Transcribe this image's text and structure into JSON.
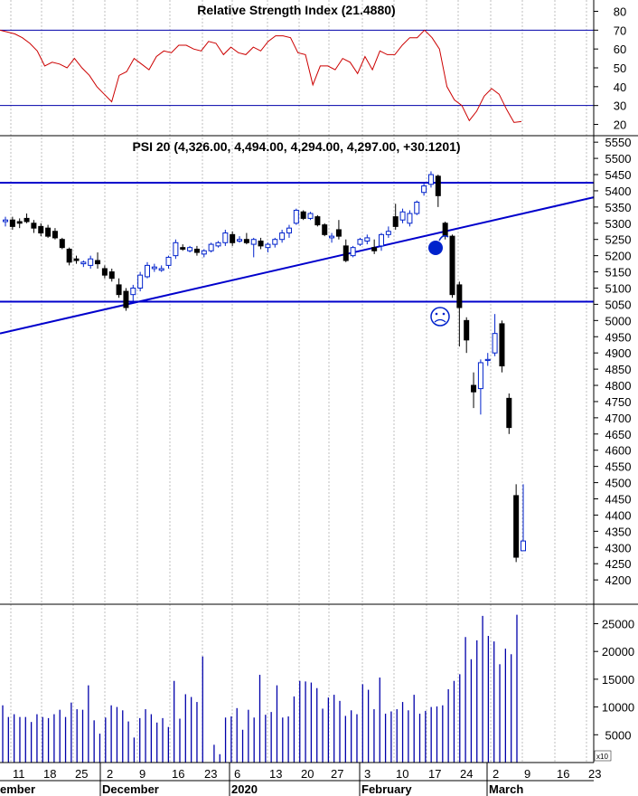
{
  "chart_data": [
    {
      "type": "line",
      "title": "Relative Strength Index (21.4880)",
      "ylim": [
        14,
        86
      ],
      "y_ticks": [
        "80",
        "70",
        "60",
        "50",
        "40",
        "30",
        "20"
      ],
      "reference_lines": [
        30,
        70
      ],
      "line_color": "#cc0000",
      "series": [
        {
          "values": [
            70,
            69,
            68,
            66,
            63,
            59,
            51,
            53,
            52,
            50,
            55,
            50,
            46,
            40,
            36,
            32,
            46,
            48,
            55,
            52,
            49,
            56,
            59,
            58,
            62,
            62,
            60,
            59,
            64,
            63,
            57,
            61,
            58,
            57,
            61,
            59,
            64,
            67,
            67,
            66,
            58,
            57,
            41,
            51,
            51,
            49,
            55,
            53,
            47,
            56,
            49,
            59,
            57,
            57,
            62,
            66,
            66,
            70,
            66,
            60,
            40,
            33,
            30,
            22,
            27,
            35,
            39,
            36,
            28,
            21,
            21.5
          ]
        }
      ]
    },
    {
      "type": "candlestick",
      "title": "PSI 20 (4,326.00, 4,494.00, 4,294.00, 4,297.00, +30.1201)",
      "ylim": [
        4125,
        5570
      ],
      "y_ticks": [
        "5550",
        "5500",
        "5450",
        "5400",
        "5350",
        "5300",
        "5250",
        "5200",
        "5150",
        "5100",
        "5050",
        "5000",
        "4950",
        "4900",
        "4850",
        "4800",
        "4750",
        "4700",
        "4650",
        "4600",
        "4550",
        "4500",
        "4450",
        "4400",
        "4350",
        "4300",
        "4250",
        "4200"
      ],
      "up_color": "#0022cc",
      "down_color": "#000000",
      "trendlines": [
        {
          "kind": "horizontal",
          "y": 5425
        },
        {
          "kind": "horizontal",
          "y": 5058
        },
        {
          "kind": "sloped",
          "x_start": "Nov 2019 start",
          "y_start": 4960,
          "x_end": "Mar 23 2020",
          "y_end": 5380
        }
      ],
      "annotations": [
        "bomb",
        "sad face"
      ],
      "ohlc": [
        [
          5305,
          5320,
          5290,
          5310
        ],
        [
          5310,
          5320,
          5280,
          5290
        ],
        [
          5305,
          5315,
          5285,
          5300
        ],
        [
          5315,
          5330,
          5300,
          5305
        ],
        [
          5300,
          5310,
          5270,
          5285
        ],
        [
          5290,
          5300,
          5260,
          5270
        ],
        [
          5285,
          5295,
          5255,
          5260
        ],
        [
          5275,
          5285,
          5250,
          5255
        ],
        [
          5250,
          5255,
          5220,
          5225
        ],
        [
          5220,
          5225,
          5170,
          5180
        ],
        [
          5190,
          5200,
          5175,
          5185
        ],
        [
          5175,
          5185,
          5165,
          5180
        ],
        [
          5170,
          5200,
          5160,
          5190
        ],
        [
          5185,
          5210,
          5160,
          5175
        ],
        [
          5160,
          5170,
          5130,
          5140
        ],
        [
          5150,
          5160,
          5120,
          5130
        ],
        [
          5110,
          5130,
          5070,
          5080
        ],
        [
          5090,
          5100,
          5030,
          5040
        ],
        [
          5080,
          5110,
          5060,
          5100
        ],
        [
          5100,
          5150,
          5090,
          5140
        ],
        [
          5135,
          5180,
          5130,
          5170
        ],
        [
          5160,
          5175,
          5150,
          5165
        ],
        [
          5155,
          5170,
          5150,
          5160
        ],
        [
          5170,
          5200,
          5160,
          5195
        ],
        [
          5200,
          5250,
          5190,
          5240
        ],
        [
          5225,
          5235,
          5215,
          5220
        ],
        [
          5215,
          5230,
          5210,
          5225
        ],
        [
          5220,
          5230,
          5200,
          5210
        ],
        [
          5205,
          5220,
          5195,
          5215
        ],
        [
          5215,
          5240,
          5210,
          5235
        ],
        [
          5230,
          5245,
          5225,
          5240
        ],
        [
          5240,
          5280,
          5230,
          5270
        ],
        [
          5265,
          5275,
          5230,
          5240
        ],
        [
          5245,
          5260,
          5240,
          5250
        ],
        [
          5250,
          5270,
          5235,
          5240
        ],
        [
          5235,
          5255,
          5195,
          5250
        ],
        [
          5245,
          5255,
          5220,
          5230
        ],
        [
          5225,
          5240,
          5210,
          5235
        ],
        [
          5235,
          5255,
          5225,
          5250
        ],
        [
          5250,
          5280,
          5240,
          5270
        ],
        [
          5270,
          5295,
          5255,
          5285
        ],
        [
          5300,
          5345,
          5295,
          5340
        ],
        [
          5335,
          5340,
          5310,
          5315
        ],
        [
          5315,
          5335,
          5310,
          5330
        ],
        [
          5320,
          5325,
          5290,
          5295
        ],
        [
          5295,
          5300,
          5260,
          5265
        ],
        [
          5255,
          5270,
          5240,
          5260
        ],
        [
          5280,
          5310,
          5250,
          5260
        ],
        [
          5230,
          5250,
          5180,
          5185
        ],
        [
          5200,
          5230,
          5195,
          5225
        ],
        [
          5235,
          5255,
          5230,
          5250
        ],
        [
          5245,
          5265,
          5235,
          5255
        ],
        [
          5225,
          5250,
          5205,
          5215
        ],
        [
          5230,
          5270,
          5215,
          5265
        ],
        [
          5265,
          5290,
          5255,
          5275
        ],
        [
          5320,
          5360,
          5280,
          5290
        ],
        [
          5310,
          5345,
          5300,
          5335
        ],
        [
          5300,
          5340,
          5290,
          5330
        ],
        [
          5330,
          5370,
          5325,
          5365
        ],
        [
          5395,
          5425,
          5385,
          5415
        ],
        [
          5420,
          5460,
          5410,
          5450
        ],
        [
          5445,
          5450,
          5350,
          5385
        ],
        [
          5300,
          5305,
          5250,
          5260
        ],
        [
          5260,
          5265,
          5070,
          5080
        ],
        [
          5110,
          5120,
          4920,
          5040
        ],
        [
          5000,
          5010,
          4900,
          4940
        ],
        [
          4800,
          4840,
          4730,
          4780
        ],
        [
          4790,
          4880,
          4710,
          4870
        ],
        [
          4880,
          4900,
          4860,
          4880
        ],
        [
          4900,
          5020,
          4890,
          4960
        ],
        [
          4990,
          5000,
          4840,
          4860
        ],
        [
          4760,
          4775,
          4650,
          4670
        ],
        [
          4460,
          4495,
          4255,
          4270
        ],
        [
          4290,
          4495,
          4290,
          4320
        ]
      ],
      "series": [
        {
          "values": []
        }
      ]
    },
    {
      "type": "bar",
      "title": "",
      "ylim": [
        0,
        28500
      ],
      "y_ticks": [
        "25000",
        "20000",
        "15000",
        "10000",
        "5000"
      ],
      "unit": "x10",
      "bar_color": "#0000aa",
      "series": [
        {
          "values": [
            10300,
            8200,
            8700,
            8200,
            8200,
            7300,
            8700,
            8200,
            8000,
            8700,
            9500,
            8200,
            10800,
            9600,
            9500,
            13900,
            7600,
            5200,
            8100,
            10300,
            10000,
            9400,
            7400,
            4500,
            8000,
            9600,
            8700,
            7200,
            8000,
            6400,
            14700,
            7900,
            12300,
            11800,
            10900,
            19100,
            0,
            3200,
            1500,
            8100,
            8300,
            9800,
            5900,
            9500,
            8100,
            15800,
            8600,
            9100,
            13900,
            8100,
            8300,
            11900,
            14700,
            14600,
            14400,
            13400,
            9700,
            11700,
            12200,
            11100,
            8400,
            9400,
            8700,
            14100,
            13100,
            9600,
            15300,
            8800,
            9200,
            9600,
            10900,
            9400,
            12200,
            8800,
            9300,
            10000,
            10100,
            10300,
            13200,
            14700,
            15900,
            22600,
            18600,
            22000,
            26400,
            22800,
            21800,
            17700,
            20500,
            19500,
            26600
          ]
        }
      ]
    }
  ],
  "x_axis": {
    "tick_labels": [
      "11",
      "18",
      "25",
      "2",
      "9",
      "16",
      "23",
      "6",
      "13",
      "20",
      "27",
      "3",
      "10",
      "17",
      "24",
      "2",
      "9",
      "16",
      "23"
    ],
    "month_labels": [
      "ember",
      "December",
      "2020",
      "February",
      "March"
    ]
  }
}
